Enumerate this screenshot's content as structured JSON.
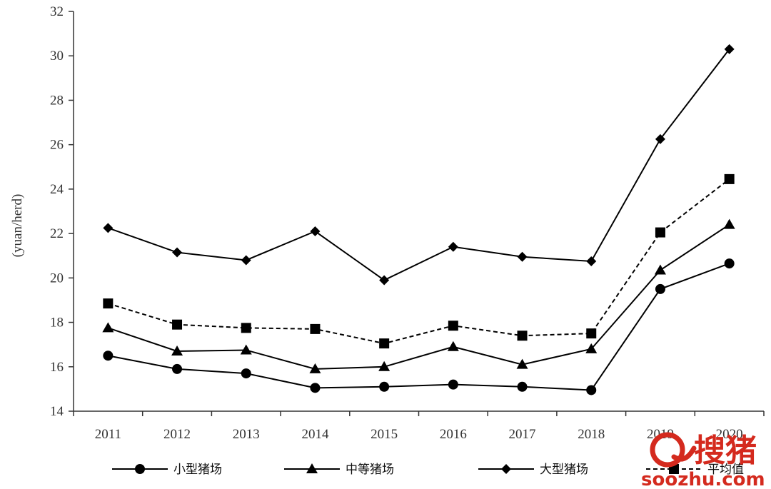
{
  "chart_data": {
    "type": "line",
    "ylabel": "(yuan/herd)",
    "ylim": [
      14,
      32
    ],
    "yticks": [
      14,
      16,
      18,
      20,
      22,
      24,
      26,
      28,
      30,
      32
    ],
    "categories": [
      "2011",
      "2012",
      "2013",
      "2014",
      "2015",
      "2016",
      "2017",
      "2018",
      "2019",
      "2020"
    ],
    "grid": false,
    "legend_position": "bottom",
    "series": [
      {
        "name": "小型猪场",
        "marker": "circle",
        "dash": false,
        "values": [
          16.5,
          15.9,
          15.7,
          15.05,
          15.1,
          15.2,
          15.1,
          14.95,
          19.5,
          20.65
        ]
      },
      {
        "name": "中等猪场",
        "marker": "triangle",
        "dash": false,
        "values": [
          17.75,
          16.7,
          16.75,
          15.9,
          16.0,
          16.9,
          16.1,
          16.8,
          20.35,
          22.4
        ]
      },
      {
        "name": "大型猪场",
        "marker": "diamond",
        "dash": false,
        "values": [
          22.25,
          21.15,
          20.8,
          22.1,
          19.9,
          21.4,
          20.95,
          20.75,
          26.25,
          30.3
        ]
      },
      {
        "name": "平均值",
        "marker": "square",
        "dash": true,
        "values": [
          18.85,
          17.9,
          17.75,
          17.7,
          17.05,
          17.85,
          17.4,
          17.5,
          22.05,
          24.45
        ]
      }
    ]
  },
  "watermark": {
    "logo_text": "搜猪",
    "site": "soozhu.com"
  },
  "colors": {
    "line": "#000000",
    "axis": "#333333",
    "watermark": "#d42a1e"
  }
}
